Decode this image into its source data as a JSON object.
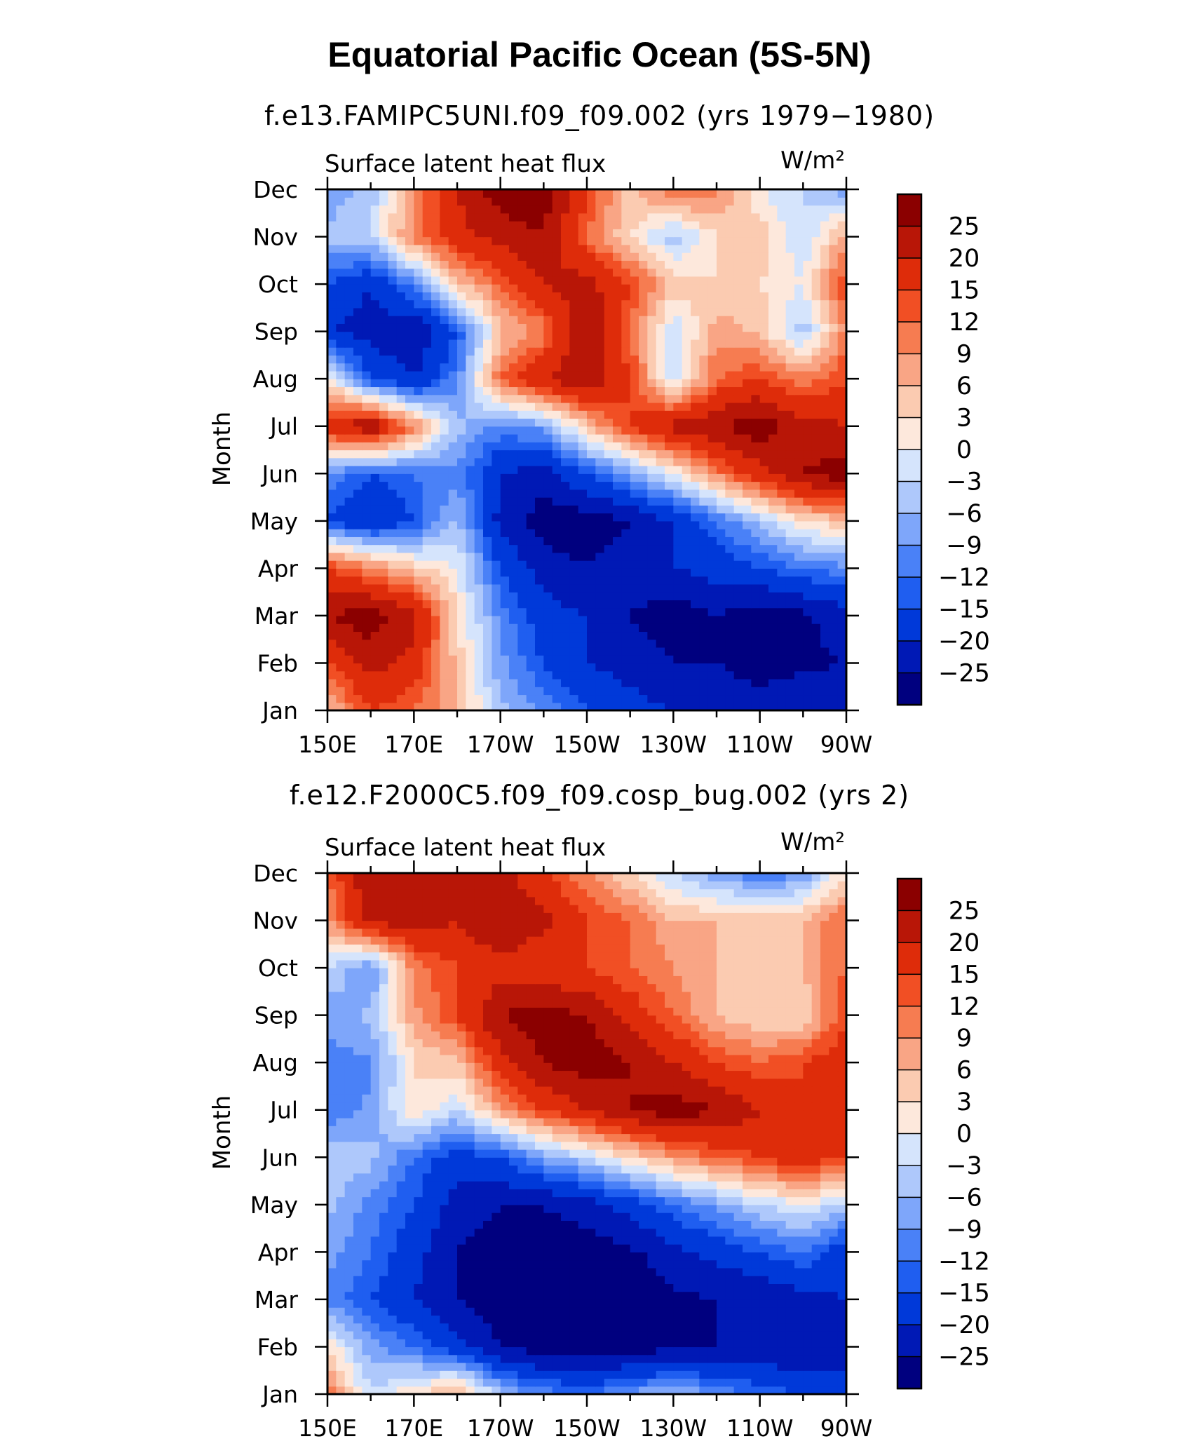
{
  "figure_title": "Equatorial Pacific Ocean (5S-5N)",
  "colors": {
    "scale": [
      "#00007f",
      "#0019b5",
      "#0039d9",
      "#1f5ef0",
      "#4a81f7",
      "#7ea6fa",
      "#aec8fb",
      "#d5e4fc",
      "#fde8dc",
      "#fbcbb1",
      "#f9a585",
      "#f67c51",
      "#f14f24",
      "#de2c0a",
      "#b81607",
      "#8b0000"
    ]
  },
  "chart_data": [
    {
      "type": "heatmap",
      "title": "f.e13.FAMIPC5UNI.f09_f09.002 (yrs 1979−1980)",
      "inner_label": "Surface latent heat flux",
      "units": "W/m²",
      "ylabel": "Month",
      "xlabel": "",
      "x_ticks": [
        "150E",
        "170E",
        "170W",
        "150W",
        "130W",
        "110W",
        "90W"
      ],
      "x": [
        150,
        160,
        170,
        180,
        190,
        200,
        210,
        220,
        230,
        240,
        250,
        260,
        270
      ],
      "y_ticks": [
        "Jan",
        "Feb",
        "Mar",
        "Apr",
        "May",
        "Jun",
        "Jul",
        "Aug",
        "Sep",
        "Oct",
        "Nov",
        "Dec"
      ],
      "colorbar_levels": [
        25,
        20,
        15,
        12,
        9,
        6,
        3,
        0,
        -3,
        -6,
        -9,
        -12,
        -15,
        -20,
        -25
      ],
      "z": [
        [
          5,
          15,
          12,
          6,
          -5,
          -10,
          -15,
          -18,
          -20,
          -20,
          -22,
          -20,
          -22
        ],
        [
          15,
          22,
          18,
          5,
          -8,
          -15,
          -20,
          -22,
          -25,
          -25,
          -28,
          -26,
          -25
        ],
        [
          25,
          28,
          22,
          3,
          -10,
          -18,
          -20,
          -25,
          -28,
          -25,
          -28,
          -26,
          -22
        ],
        [
          15,
          10,
          5,
          0,
          -15,
          -22,
          -25,
          -22,
          -20,
          -18,
          -15,
          -12,
          -10
        ],
        [
          -15,
          -20,
          -15,
          -5,
          -22,
          -28,
          -28,
          -25,
          -20,
          -12,
          -5,
          3,
          5
        ],
        [
          -10,
          -15,
          -12,
          -10,
          -20,
          -22,
          -15,
          -8,
          0,
          10,
          18,
          25,
          28
        ],
        [
          18,
          25,
          10,
          -5,
          -10,
          -8,
          5,
          15,
          22,
          25,
          28,
          22,
          20
        ],
        [
          3,
          -15,
          -20,
          -10,
          12,
          20,
          25,
          15,
          -3,
          12,
          15,
          10,
          15
        ],
        [
          -20,
          -22,
          -25,
          -15,
          5,
          10,
          25,
          12,
          -3,
          8,
          5,
          -5,
          10
        ],
        [
          -15,
          -20,
          -10,
          5,
          12,
          20,
          22,
          15,
          5,
          3,
          3,
          0,
          15
        ],
        [
          -5,
          -3,
          10,
          18,
          22,
          25,
          12,
          3,
          -5,
          3,
          5,
          -3,
          8
        ],
        [
          -8,
          -5,
          10,
          20,
          28,
          28,
          15,
          5,
          12,
          10,
          0,
          -3,
          -8
        ]
      ]
    },
    {
      "type": "heatmap",
      "title": "f.e12.F2000C5.f09_f09.cosp_bug.002 (yrs 2)",
      "inner_label": "Surface latent heat flux",
      "units": "W/m²",
      "ylabel": "Month",
      "xlabel": "",
      "x_ticks": [
        "150E",
        "170E",
        "170W",
        "150W",
        "130W",
        "110W",
        "90W"
      ],
      "x": [
        150,
        160,
        170,
        180,
        190,
        200,
        210,
        220,
        230,
        240,
        250,
        260,
        270
      ],
      "y_ticks": [
        "Jan",
        "Feb",
        "Mar",
        "Apr",
        "May",
        "Jun",
        "Jul",
        "Aug",
        "Sep",
        "Oct",
        "Nov",
        "Dec"
      ],
      "colorbar_levels": [
        25,
        20,
        15,
        12,
        9,
        6,
        3,
        0,
        -3,
        -6,
        -9,
        -12,
        -15,
        -20,
        -25
      ],
      "z": [
        [
          12,
          -3,
          3,
          8,
          -5,
          -10,
          -12,
          -8,
          -5,
          -10,
          -12,
          -15,
          -18
        ],
        [
          3,
          -8,
          -12,
          -18,
          -25,
          -28,
          -28,
          -28,
          -26,
          -25,
          -25,
          -25,
          -22
        ],
        [
          -10,
          -15,
          -20,
          -25,
          -28,
          -30,
          -30,
          -28,
          -26,
          -25,
          -25,
          -22,
          -20
        ],
        [
          -8,
          -12,
          -18,
          -25,
          -28,
          -28,
          -28,
          -26,
          -22,
          -18,
          -15,
          -12,
          -18
        ],
        [
          -5,
          -10,
          -15,
          -22,
          -25,
          -25,
          -22,
          -18,
          -12,
          -8,
          -3,
          0,
          -5
        ],
        [
          -3,
          -5,
          -12,
          -18,
          -15,
          -8,
          -3,
          3,
          8,
          12,
          15,
          18,
          15
        ],
        [
          -12,
          -8,
          3,
          -3,
          8,
          15,
          20,
          25,
          28,
          25,
          20,
          15,
          15
        ],
        [
          -10,
          -10,
          3,
          5,
          18,
          25,
          28,
          25,
          20,
          15,
          12,
          15,
          18
        ],
        [
          -8,
          -5,
          8,
          15,
          25,
          28,
          25,
          18,
          12,
          6,
          3,
          3,
          15
        ],
        [
          -3,
          -10,
          10,
          15,
          18,
          15,
          15,
          12,
          9,
          6,
          3,
          6,
          12
        ],
        [
          8,
          22,
          22,
          20,
          25,
          22,
          15,
          12,
          6,
          6,
          6,
          6,
          12
        ],
        [
          12,
          25,
          25,
          20,
          22,
          15,
          10,
          3,
          -3,
          -8,
          -12,
          -9,
          3
        ]
      ]
    }
  ]
}
